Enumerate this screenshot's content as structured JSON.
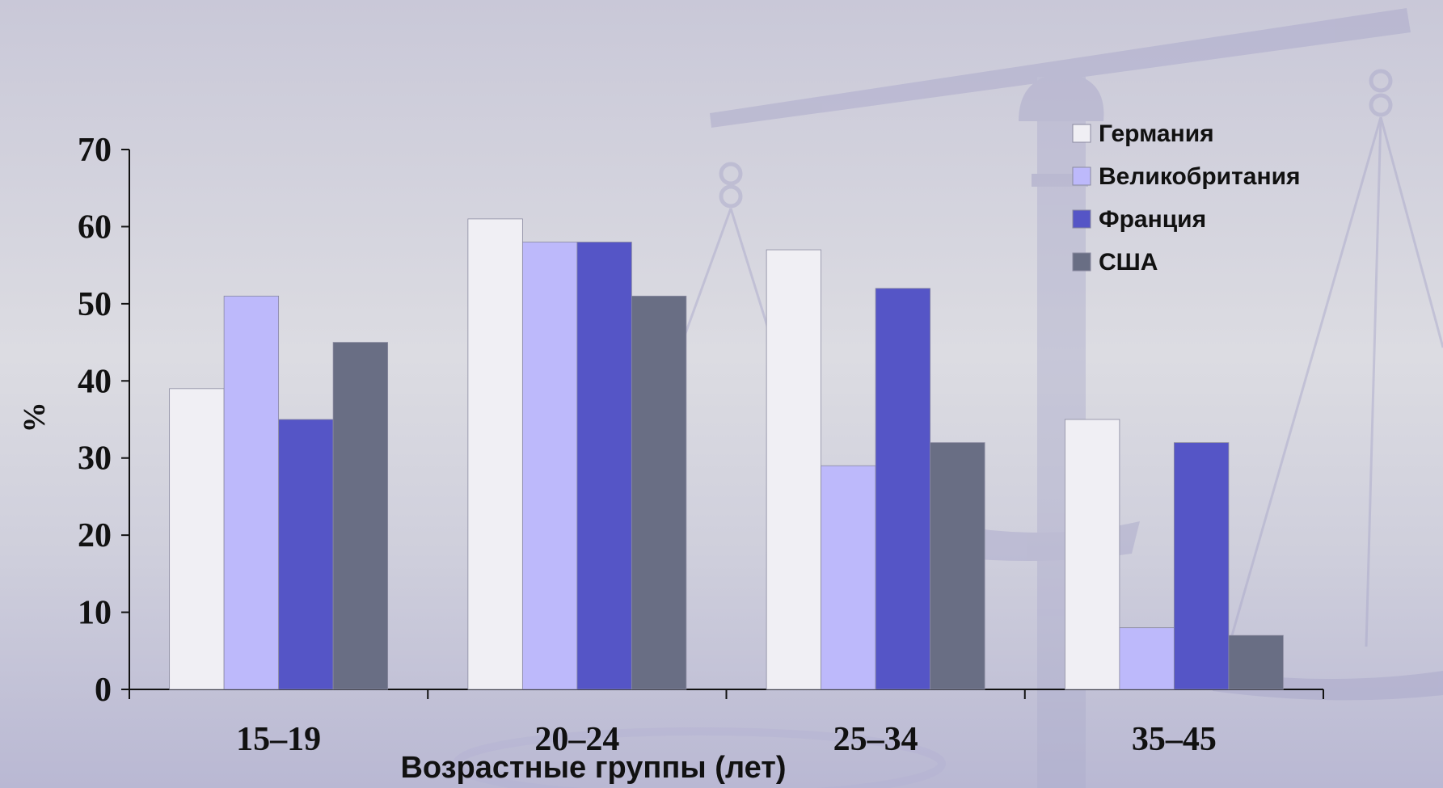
{
  "chart_data": {
    "type": "bar",
    "title": "",
    "xlabel": "Возрастные группы (лет)",
    "ylabel": "%",
    "ylim": [
      0,
      70
    ],
    "yticks": [
      "0",
      "10",
      "20",
      "30",
      "40",
      "50",
      "60",
      "70"
    ],
    "categories": [
      "15–19",
      "20–24",
      "25–34",
      "35–45"
    ],
    "series": [
      {
        "name": "Германия",
        "color": "#f0eff4",
        "values": [
          39,
          61,
          57,
          35
        ]
      },
      {
        "name": "Великобритания",
        "color": "#bdb9fb",
        "values": [
          51,
          58,
          29,
          8
        ]
      },
      {
        "name": "Франция",
        "color": "#5555c6",
        "values": [
          35,
          58,
          52,
          32
        ]
      },
      {
        "name": "США",
        "color": "#696e84",
        "values": [
          45,
          51,
          32,
          7
        ]
      }
    ],
    "legend_position": "top-right",
    "grid": false
  }
}
